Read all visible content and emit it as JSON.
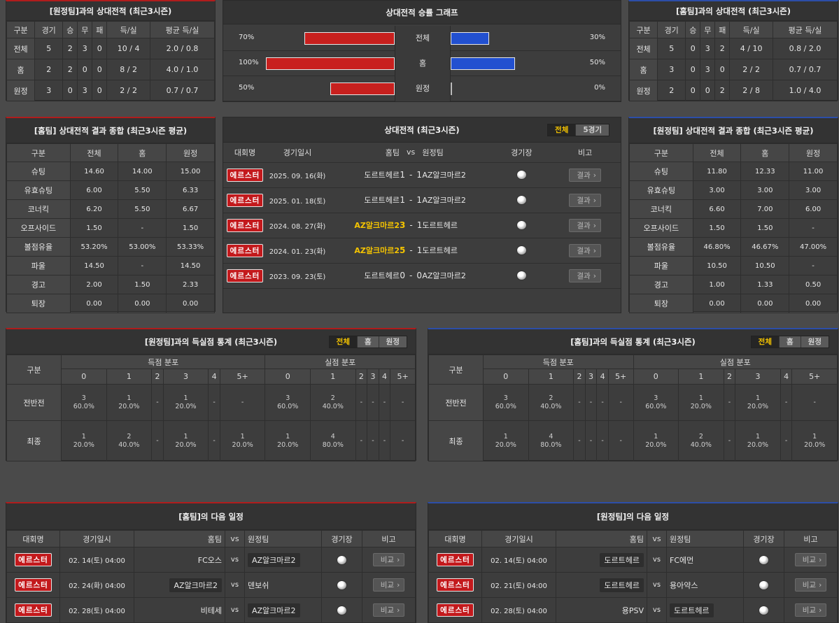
{
  "away_h2h": {
    "title": "[원정팀]과의 상대전적 (최근3시즌)",
    "headers": [
      "구분",
      "경기",
      "승",
      "무",
      "패",
      "득/실",
      "평균 득/실"
    ],
    "rows": [
      [
        "전체",
        "5",
        "2",
        "3",
        "0",
        "10 / 4",
        "2.0 / 0.8"
      ],
      [
        "홈",
        "2",
        "2",
        "0",
        "0",
        "8 / 2",
        "4.0 / 1.0"
      ],
      [
        "원정",
        "3",
        "0",
        "3",
        "0",
        "2 / 2",
        "0.7 / 0.7"
      ]
    ]
  },
  "graph": {
    "title": "상대전적 승률 그래프",
    "rows": [
      {
        "left_label": "70%",
        "center": "전체",
        "right_label": "30%",
        "left": 70,
        "right": 30
      },
      {
        "left_label": "100%",
        "center": "홈",
        "right_label": "50%",
        "left": 100,
        "right": 50
      },
      {
        "left_label": "50%",
        "center": "원정",
        "right_label": "0%",
        "left": 50,
        "right": 0
      }
    ]
  },
  "home_h2h": {
    "title": "[홈팀]과의 상대전적 (최근3시즌)",
    "headers": [
      "구분",
      "경기",
      "승",
      "무",
      "패",
      "득/실",
      "평균 득/실"
    ],
    "rows": [
      [
        "전체",
        "5",
        "0",
        "3",
        "2",
        "4 / 10",
        "0.8 / 2.0"
      ],
      [
        "홈",
        "3",
        "0",
        "3",
        "0",
        "2 / 2",
        "0.7 / 0.7"
      ],
      [
        "원정",
        "2",
        "0",
        "0",
        "2",
        "2 / 8",
        "1.0 / 4.0"
      ]
    ]
  },
  "home_summary": {
    "title": "[홈팀] 상대전적 결과 종합 (최근3시즌 평균)",
    "headers": [
      "구분",
      "전체",
      "홈",
      "원정"
    ],
    "rows": [
      [
        "슈팅",
        "14.60",
        "14.00",
        "15.00"
      ],
      [
        "유효슈팅",
        "6.00",
        "5.50",
        "6.33"
      ],
      [
        "코너킥",
        "6.20",
        "5.50",
        "6.67"
      ],
      [
        "오프사이드",
        "1.50",
        "-",
        "1.50"
      ],
      [
        "볼점유율",
        "53.20%",
        "53.00%",
        "53.33%"
      ],
      [
        "파울",
        "14.50",
        "-",
        "14.50"
      ],
      [
        "경고",
        "2.00",
        "1.50",
        "2.33"
      ],
      [
        "퇴장",
        "0.00",
        "0.00",
        "0.00"
      ]
    ]
  },
  "matches": {
    "title": "상대전적 (최근3시즌)",
    "toggle": [
      "전체",
      "5경기"
    ],
    "headers": {
      "league": "대회명",
      "date": "경기일시",
      "home": "홈팀",
      "vs": "vs",
      "away": "원정팀",
      "stadium": "경기장",
      "note": "비고"
    },
    "result_label": "결과",
    "rows": [
      {
        "league": "에르스터",
        "date": "2025. 09. 16(화)",
        "home": "도르트헤르",
        "score_h": "1",
        "dash": "-",
        "score_a": "1",
        "away": "AZ알크마르2",
        "home_win": false
      },
      {
        "league": "에르스터",
        "date": "2025. 01. 18(토)",
        "home": "도르트헤르",
        "score_h": "1",
        "dash": "-",
        "score_a": "1",
        "away": "AZ알크마르2",
        "home_win": false
      },
      {
        "league": "에르스터",
        "date": "2024. 08. 27(화)",
        "home": "AZ알크마르2",
        "score_h": "3",
        "dash": "-",
        "score_a": "1",
        "away": "도르트헤르",
        "home_win": true
      },
      {
        "league": "에르스터",
        "date": "2024. 01. 23(화)",
        "home": "AZ알크마르2",
        "score_h": "5",
        "dash": "-",
        "score_a": "1",
        "away": "도르트헤르",
        "home_win": true
      },
      {
        "league": "에르스터",
        "date": "2023. 09. 23(토)",
        "home": "도르트헤르",
        "score_h": "0",
        "dash": "-",
        "score_a": "0",
        "away": "AZ알크마르2",
        "home_win": false
      }
    ]
  },
  "away_summary": {
    "title": "[원정팀] 상대전적 결과 종합 (최근3시즌 평균)",
    "headers": [
      "구분",
      "전체",
      "홈",
      "원정"
    ],
    "rows": [
      [
        "슈팅",
        "11.80",
        "12.33",
        "11.00"
      ],
      [
        "유효슈팅",
        "3.00",
        "3.00",
        "3.00"
      ],
      [
        "코너킥",
        "6.60",
        "7.00",
        "6.00"
      ],
      [
        "오프사이드",
        "1.50",
        "1.50",
        "-"
      ],
      [
        "볼점유율",
        "46.80%",
        "46.67%",
        "47.00%"
      ],
      [
        "파울",
        "10.50",
        "10.50",
        "-"
      ],
      [
        "경고",
        "1.00",
        "1.33",
        "0.50"
      ],
      [
        "퇴장",
        "0.00",
        "0.00",
        "0.00"
      ]
    ]
  },
  "goals_left": {
    "title": "[원정팀]과의 득실점 통계 (최근3시즌)",
    "toggle": [
      "전체",
      "홈",
      "원정"
    ],
    "col_label": "구분",
    "scored_label": "득점 분포",
    "conceded_label": "실점 분포",
    "buckets": [
      "0",
      "1",
      "2",
      "3",
      "4",
      "5+"
    ],
    "rows": [
      {
        "label": "전반전",
        "scored": [
          [
            "3",
            "60.0%"
          ],
          [
            "1",
            "20.0%"
          ],
          [
            "-",
            ""
          ],
          [
            "1",
            "20.0%"
          ],
          [
            "-",
            ""
          ],
          [
            "-",
            ""
          ]
        ],
        "conceded": [
          [
            "3",
            "60.0%"
          ],
          [
            "2",
            "40.0%"
          ],
          [
            "-",
            ""
          ],
          [
            "-",
            ""
          ],
          [
            "-",
            ""
          ],
          [
            "-",
            ""
          ]
        ]
      },
      {
        "label": "최종",
        "scored": [
          [
            "1",
            "20.0%"
          ],
          [
            "2",
            "40.0%"
          ],
          [
            "-",
            ""
          ],
          [
            "1",
            "20.0%"
          ],
          [
            "-",
            ""
          ],
          [
            "1",
            "20.0%"
          ]
        ],
        "conceded": [
          [
            "1",
            "20.0%"
          ],
          [
            "4",
            "80.0%"
          ],
          [
            "-",
            ""
          ],
          [
            "-",
            ""
          ],
          [
            "-",
            ""
          ],
          [
            "-",
            ""
          ]
        ]
      }
    ]
  },
  "goals_right": {
    "title": "[홈팀]과의 득실점 통계 (최근3시즌)",
    "toggle": [
      "전체",
      "홈",
      "원정"
    ],
    "col_label": "구분",
    "scored_label": "득점 분포",
    "conceded_label": "실점 분포",
    "buckets": [
      "0",
      "1",
      "2",
      "3",
      "4",
      "5+"
    ],
    "rows": [
      {
        "label": "전반전",
        "scored": [
          [
            "3",
            "60.0%"
          ],
          [
            "2",
            "40.0%"
          ],
          [
            "-",
            ""
          ],
          [
            "-",
            ""
          ],
          [
            "-",
            ""
          ],
          [
            "-",
            ""
          ]
        ],
        "conceded": [
          [
            "3",
            "60.0%"
          ],
          [
            "1",
            "20.0%"
          ],
          [
            "-",
            ""
          ],
          [
            "1",
            "20.0%"
          ],
          [
            "-",
            ""
          ],
          [
            "-",
            ""
          ]
        ]
      },
      {
        "label": "최종",
        "scored": [
          [
            "1",
            "20.0%"
          ],
          [
            "4",
            "80.0%"
          ],
          [
            "-",
            ""
          ],
          [
            "-",
            ""
          ],
          [
            "-",
            ""
          ],
          [
            "-",
            ""
          ]
        ],
        "conceded": [
          [
            "1",
            "20.0%"
          ],
          [
            "2",
            "40.0%"
          ],
          [
            "-",
            ""
          ],
          [
            "1",
            "20.0%"
          ],
          [
            "-",
            ""
          ],
          [
            "1",
            "20.0%"
          ]
        ]
      }
    ]
  },
  "next_home": {
    "title": "[홈팀]의 다음 일정",
    "headers": {
      "league": "대회명",
      "date": "경기일시",
      "home": "홈팀",
      "vs": "vs",
      "away": "원정팀",
      "stadium": "경기장",
      "note": "비고"
    },
    "note_label": "비교",
    "rows": [
      {
        "league": "에르스터",
        "date": "02. 14(토) 04:00",
        "home": "FC오스",
        "vs": "vs",
        "away": "AZ알크마르2",
        "box": "away"
      },
      {
        "league": "에르스터",
        "date": "02. 24(화) 04:00",
        "home": "AZ알크마르2",
        "vs": "vs",
        "away": "덴보쉬",
        "box": "home"
      },
      {
        "league": "에르스터",
        "date": "02. 28(토) 04:00",
        "home": "비테세",
        "vs": "vs",
        "away": "AZ알크마르2",
        "box": "away"
      }
    ]
  },
  "next_away": {
    "title": "[원정팀]의 다음 일정",
    "headers": {
      "league": "대회명",
      "date": "경기일시",
      "home": "홈팀",
      "vs": "vs",
      "away": "원정팀",
      "stadium": "경기장",
      "note": "비고"
    },
    "note_label": "비교",
    "rows": [
      {
        "league": "에르스터",
        "date": "02. 14(토) 04:00",
        "home": "도르트헤르",
        "vs": "vs",
        "away": "FC에먼",
        "box": "home"
      },
      {
        "league": "에르스터",
        "date": "02. 21(토) 04:00",
        "home": "도르트헤르",
        "vs": "vs",
        "away": "용아약스",
        "box": "home"
      },
      {
        "league": "에르스터",
        "date": "02. 28(토) 04:00",
        "home": "용PSV",
        "vs": "vs",
        "away": "도르트헤르",
        "box": "away"
      }
    ]
  }
}
